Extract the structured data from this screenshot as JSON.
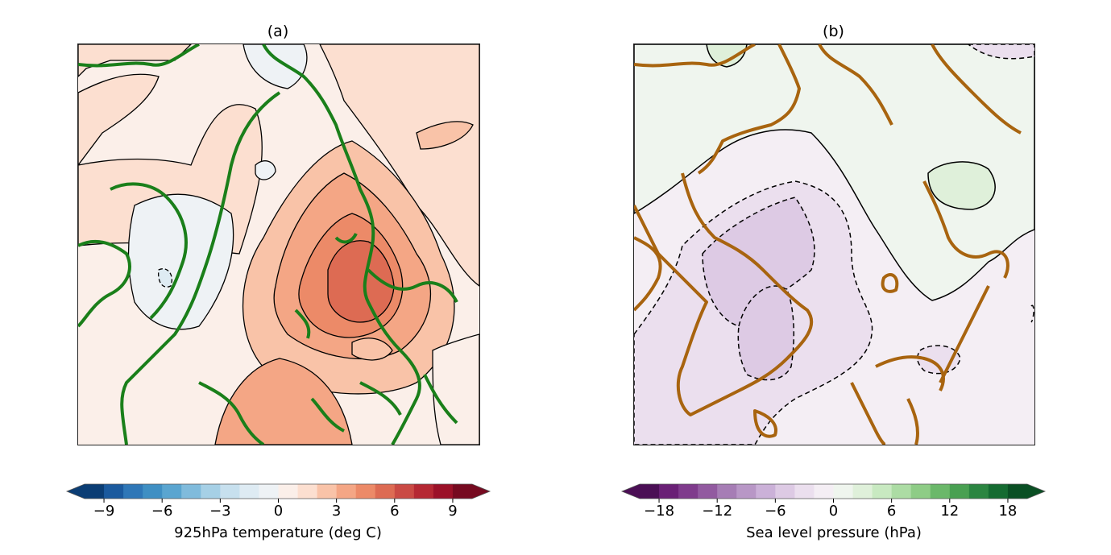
{
  "figure": {
    "panels": [
      {
        "id": "a",
        "title": "(a)"
      },
      {
        "id": "b",
        "title": "(b)"
      }
    ]
  },
  "chart_data": [
    {
      "type": "heatmap",
      "title": "(a)",
      "subtype": "polar-stereographic contour map",
      "variable": "925hPa temperature anomaly",
      "coastline_color": "#1a7f1a",
      "contour_line_color": "#000000",
      "colorbar": {
        "label": "925hPa temperature (deg C)",
        "colormap": "RdBu_r",
        "range": [
          -10,
          10
        ],
        "extend": "both",
        "levels": [
          -10,
          -9,
          -8,
          -7,
          -6,
          -5,
          -4,
          -3,
          -2,
          -1,
          0,
          1,
          2,
          3,
          4,
          5,
          6,
          7,
          8,
          9,
          10
        ],
        "ticks": [
          -9,
          -6,
          -3,
          0,
          3,
          6,
          9
        ],
        "tick_labels": [
          "−9",
          "−6",
          "−3",
          "0",
          "3",
          "6",
          "9"
        ],
        "colors": [
          "#0b3d74",
          "#1b5a9e",
          "#2f77b7",
          "#3f8fc3",
          "#5aa5d0",
          "#80bbdc",
          "#a6d0e6",
          "#c7e0ee",
          "#deebf3",
          "#eef2f5",
          "#fbefe9",
          "#fcdfd0",
          "#f9c3a8",
          "#f4a685",
          "#ec8a68",
          "#dd6b53",
          "#ca4a44",
          "#b52833",
          "#9b1128",
          "#760a20"
        ]
      },
      "features": {
        "max_anomaly_region": "warm core centered near the North Pole / Barents-Kara region, innermost contour ~5-6 deg C",
        "cool_regions": "small slightly negative areas over Canadian Arctic Archipelago, Alaska and scattered patches",
        "contour_interval_deg_C": 1
      }
    },
    {
      "type": "heatmap",
      "title": "(b)",
      "subtype": "polar-stereographic contour map",
      "variable": "Sea level pressure anomaly",
      "coastline_color": "#a8640f",
      "contour_line_color": "#000000",
      "colorbar": {
        "label": "Sea level pressure (hPa)",
        "colormap": "PRGn",
        "range": [
          -20,
          20
        ],
        "extend": "both",
        "levels": [
          -20,
          -18,
          -16,
          -14,
          -12,
          -10,
          -8,
          -6,
          -4,
          -2,
          0,
          2,
          4,
          6,
          8,
          10,
          12,
          14,
          16,
          18,
          20
        ],
        "ticks": [
          -18,
          -12,
          -6,
          0,
          6,
          12,
          18
        ],
        "tick_labels": [
          "−18",
          "−12",
          "−6",
          "0",
          "6",
          "12",
          "18"
        ],
        "colors": [
          "#4b0f55",
          "#6a2076",
          "#7f3b8c",
          "#925aa0",
          "#a67db5",
          "#b897c6",
          "#cbb1d8",
          "#ddcae4",
          "#ebdfee",
          "#f4eef4",
          "#eff5ee",
          "#dff0da",
          "#c8e9c1",
          "#acdca4",
          "#8ecc86",
          "#6bb86a",
          "#49a052",
          "#2b8541",
          "#156b31",
          "#0a4f24"
        ]
      },
      "features": {
        "negative_centers": "two low-pressure cores (dashed contours) over Greenland / Baffin region, about -4 to -6 hPa",
        "positive_regions": "weak positive anomalies (solid contours) over Arctic Ocean / Siberia, up to about +2 to +4 hPa",
        "zero_contour": "solid line separating green (positive) north from purple (negative) south"
      }
    }
  ]
}
